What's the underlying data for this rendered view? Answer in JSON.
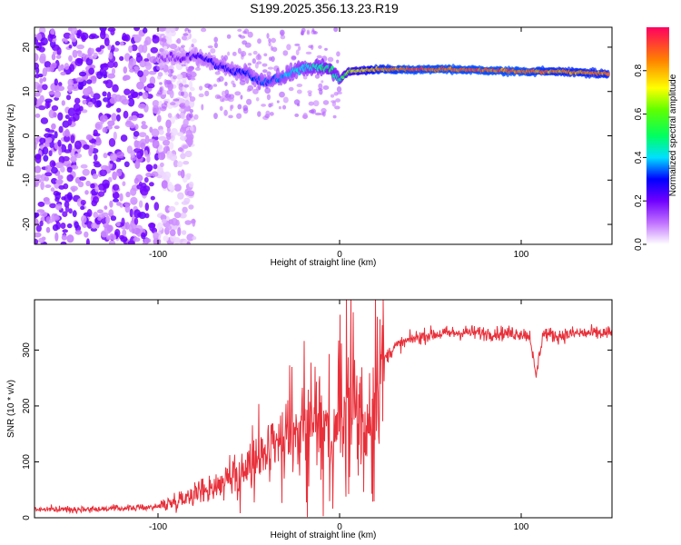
{
  "figure": {
    "title": "S199.2025.356.13.23.R19"
  },
  "chart_data": [
    {
      "type": "heatmap",
      "title": "",
      "xlabel": "Height of straight line (km)",
      "ylabel": "Frequency (Hz)",
      "xlim": [
        -168,
        150
      ],
      "ylim": [
        -24.5,
        24.5
      ],
      "xticks": [
        -100,
        0,
        100
      ],
      "yticks": [
        -20,
        -10,
        0,
        10,
        20
      ],
      "colorbar": {
        "label": "Normalized spectral amplitude",
        "range": [
          0,
          1
        ],
        "ticks": [
          0.0,
          0.2,
          0.4,
          0.6,
          0.8
        ]
      },
      "ridge_line": {
        "x": [
          -100,
          -90,
          -80,
          -70,
          -60,
          -50,
          -45,
          -40,
          -30,
          -20,
          -10,
          -5,
          0,
          5,
          20,
          40,
          60,
          80,
          100,
          120,
          148
        ],
        "frequency": [
          17.5,
          17.5,
          18.0,
          16.5,
          15.0,
          14.0,
          12.5,
          12.0,
          13.5,
          15.5,
          15.5,
          15.0,
          12.5,
          14.5,
          15.0,
          15.0,
          15.0,
          14.8,
          14.5,
          14.5,
          14.0
        ],
        "amplitude": [
          0.15,
          0.2,
          0.25,
          0.3,
          0.3,
          0.35,
          0.35,
          0.35,
          0.4,
          0.45,
          0.5,
          0.55,
          0.5,
          0.7,
          0.9,
          0.95,
          0.95,
          0.95,
          0.95,
          0.9,
          0.9
        ]
      },
      "noise_region": {
        "x_range": [
          -168,
          -100
        ],
        "frequency_range": [
          -24.5,
          24.5
        ],
        "amplitude_typical": 0.1
      }
    },
    {
      "type": "line",
      "title": "",
      "xlabel": "Height of straight line (km)",
      "ylabel": "SNR (10 * v/v)",
      "xlim": [
        -168,
        150
      ],
      "ylim": [
        0,
        390
      ],
      "xticks": [
        -100,
        0,
        100
      ],
      "yticks": [
        0,
        100,
        200,
        300
      ],
      "series": [
        {
          "name": "SNR",
          "color": "#e8303a",
          "x": [
            -168,
            -150,
            -130,
            -110,
            -100,
            -90,
            -80,
            -70,
            -60,
            -50,
            -40,
            -30,
            -20,
            -10,
            -5,
            0,
            5,
            10,
            15,
            20,
            25,
            30,
            40,
            50,
            60,
            70,
            80,
            90,
            100,
            105,
            108,
            112,
            120,
            130,
            140,
            150
          ],
          "y": [
            15,
            15,
            16,
            18,
            20,
            30,
            45,
            55,
            70,
            90,
            110,
            135,
            160,
            175,
            140,
            170,
            200,
            215,
            150,
            260,
            285,
            305,
            320,
            328,
            330,
            332,
            330,
            330,
            330,
            325,
            250,
            330,
            325,
            330,
            330,
            330
          ]
        }
      ]
    }
  ]
}
